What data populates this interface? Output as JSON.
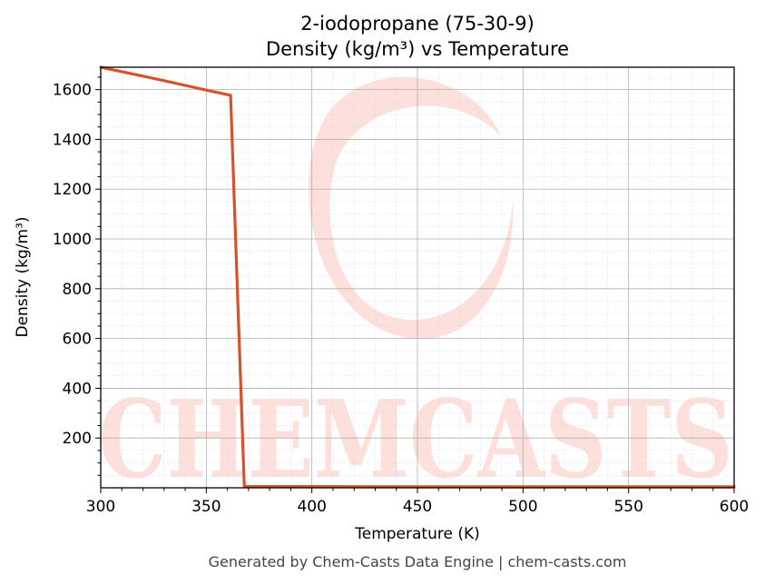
{
  "chart_data": {
    "type": "line",
    "title": "2-iodopropane (75-30-9)",
    "subtitle": "Density (kg/m³) vs Temperature",
    "xlabel": "Temperature (K)",
    "ylabel": "Density (kg/m³)",
    "xlim": [
      300,
      600
    ],
    "ylim": [
      0,
      1690
    ],
    "x_ticks": [
      300,
      350,
      400,
      450,
      500,
      550,
      600
    ],
    "y_ticks": [
      200,
      400,
      600,
      800,
      1000,
      1200,
      1400,
      1600
    ],
    "grid": true,
    "series": [
      {
        "color": "#d4532a",
        "x": [
          300,
          310,
          320,
          330,
          340,
          350,
          360,
          361.5,
          368,
          380,
          400,
          450,
          500,
          550,
          600
        ],
        "y": [
          1690,
          1672,
          1654,
          1636,
          1617,
          1598,
          1580,
          1577,
          5,
          5,
          5,
          4,
          4,
          4,
          4
        ]
      }
    ]
  },
  "watermark": {
    "text": "CHEMCASTS",
    "color": "#fde0db"
  },
  "footer": "Generated by Chem-Casts Data Engine | chem-casts.com"
}
